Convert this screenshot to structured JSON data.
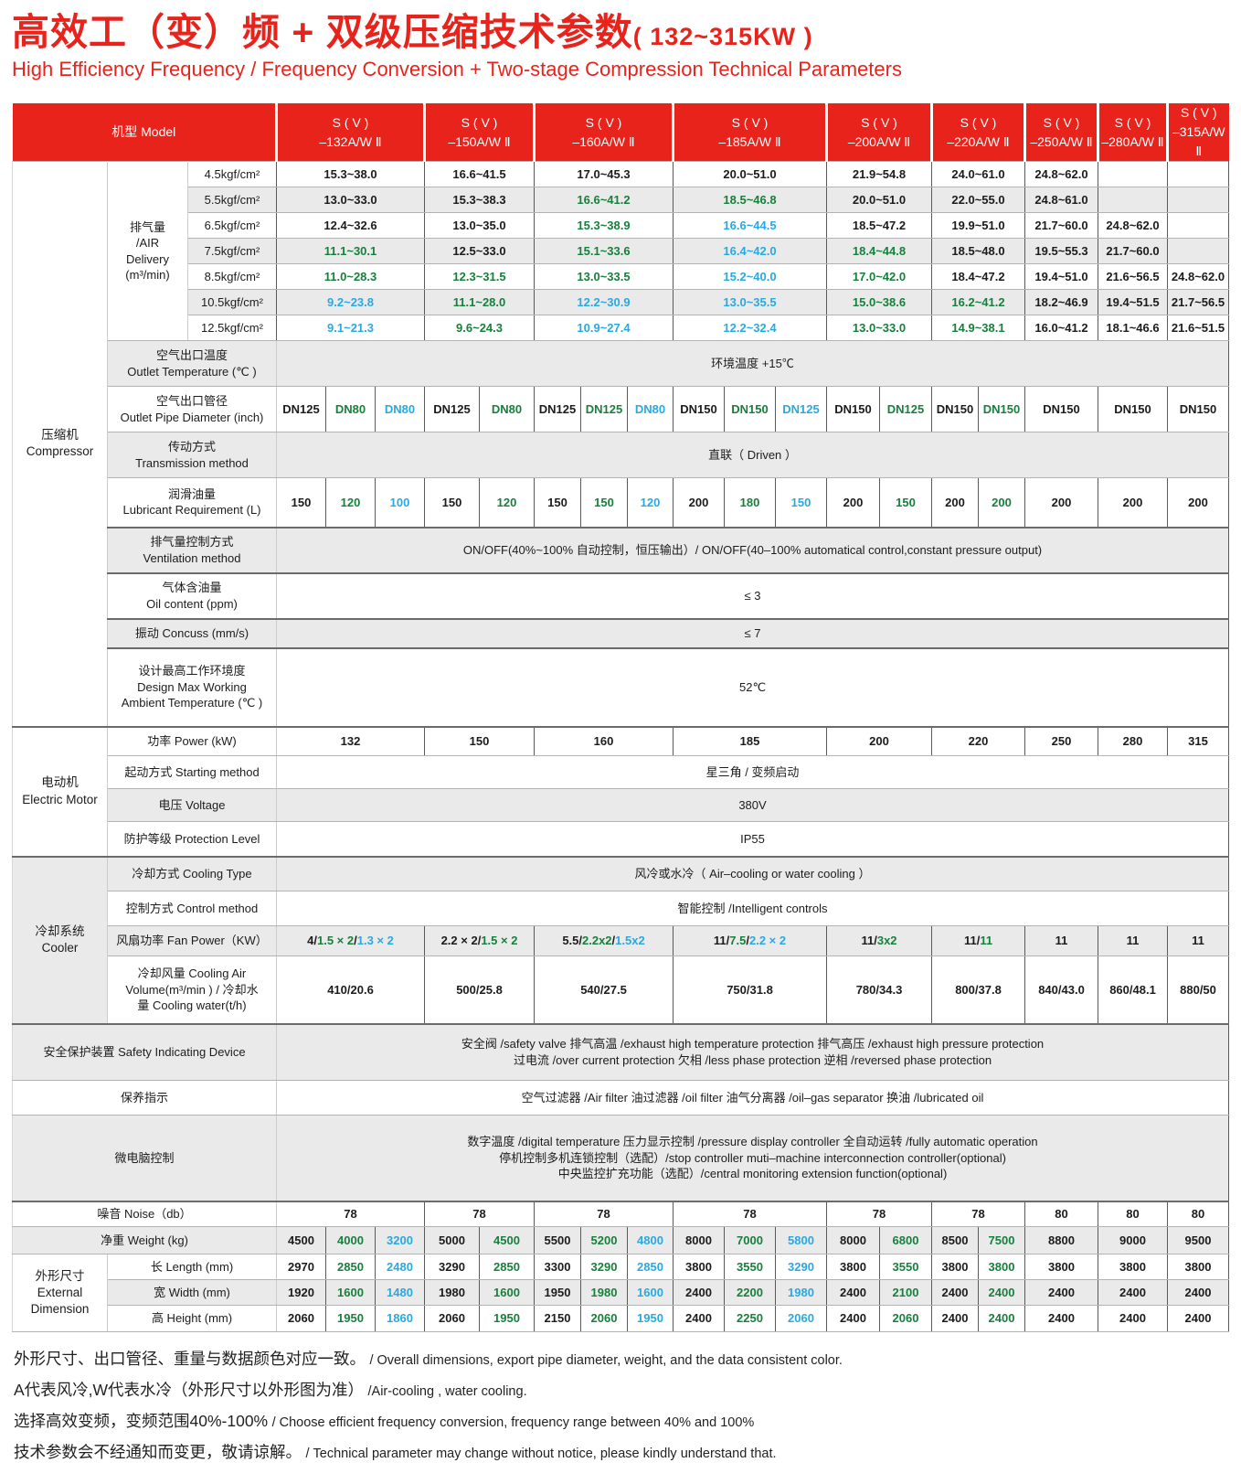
{
  "colors": {
    "red": "#e8231c",
    "green": "#17803c",
    "blue": "#29a9e1"
  },
  "title": {
    "zh": "高效工（变）频 + 双级压缩技术参数",
    "kw": "( 132~315KW )",
    "en": "High Efficiency Frequency / Frequency Conversion + Two-stage Compression Technical Parameters"
  },
  "header": {
    "model_label": "机型 Model",
    "models": [
      {
        "line1": "S ( V )",
        "line2": "–132A/W Ⅱ"
      },
      {
        "line1": "S ( V )",
        "line2": "–150A/W Ⅱ"
      },
      {
        "line1": "S ( V )",
        "line2": "–160A/W Ⅱ"
      },
      {
        "line1": "S ( V )",
        "line2": "–185A/W Ⅱ"
      },
      {
        "line1": "S ( V )",
        "line2": "–200A/W Ⅱ"
      },
      {
        "line1": "S ( V )",
        "line2": "–220A/W Ⅱ"
      },
      {
        "line1": "S ( V )",
        "line2": "–250A/W Ⅱ"
      },
      {
        "line1": "S ( V )",
        "line2": "–280A/W Ⅱ"
      },
      {
        "line1": "S ( V )",
        "line2": "–315A/W Ⅱ"
      }
    ]
  },
  "labels": {
    "compressor": "压缩机\nCompressor",
    "air_delivery": "排气量\n/AIR\nDelivery\n(m³/min)",
    "outlet_temp": "空气出口温度\nOutlet Temperature (℃ )",
    "outlet_pipe": "空气出口管径\nOutlet Pipe Diameter (inch)",
    "transmission": "传动方式\nTransmission method",
    "lubricant": "润滑油量\nLubricant Requirement (L)",
    "ventilation": "排气量控制方式\nVentilation method",
    "oil_content": "气体含油量\nOil content (ppm)",
    "concuss": "振动 Concuss (mm/s)",
    "design_max": "设计最高工作环境度\nDesign Max Working\nAmbient Temperature (℃ )",
    "motor": "电动机\nElectric Motor",
    "power": "功率 Power (kW)",
    "starting": "起动方式 Starting method",
    "voltage": "电压 Voltage",
    "protection": "防护等级 Protection Level",
    "cooler": "冷却系统\nCooler",
    "cooling_type": "冷却方式 Cooling Type",
    "control": "控制方式 Control method",
    "fan_power": "风扇功率 Fan Power（KW）",
    "cooling_volume": "冷却风量 Cooling Air\nVolume(m³/min ) / 冷却水\n量 Cooling water(t/h)",
    "safety": "安全保护装置 Safety Indicating Device",
    "maintenance": "保养指示",
    "micro": "微电脑控制",
    "noise": "噪音 Noise（db）",
    "weight": "净重 Weight (kg)",
    "ext_dim": "外形尺寸\nExternal\nDimension",
    "length": "长 Length  (mm)",
    "width": "宽 Width  (mm)",
    "height": "高 Height  (mm)"
  },
  "body": {
    "air": [
      {
        "label": "4.5kgf/cm²",
        "cells": [
          {
            "v": "15.3~38.0",
            "c": "k"
          },
          {
            "v": "16.6~41.5",
            "c": "k"
          },
          {
            "v": "17.0~45.3",
            "c": "k"
          },
          {
            "v": "20.0~51.0",
            "c": "k"
          },
          {
            "v": "21.9~54.8",
            "c": "k"
          },
          {
            "v": "24.0~61.0",
            "c": "k"
          },
          {
            "v": "24.8~62.0",
            "c": "k"
          },
          {
            "v": ""
          },
          {
            "v": ""
          }
        ]
      },
      {
        "label": "5.5kgf/cm²",
        "cells": [
          {
            "v": "13.0~33.0",
            "c": "k"
          },
          {
            "v": "15.3~38.3",
            "c": "k"
          },
          {
            "v": "16.6~41.2",
            "c": "g"
          },
          {
            "v": "18.5~46.8",
            "c": "g"
          },
          {
            "v": "20.0~51.0",
            "c": "k"
          },
          {
            "v": "22.0~55.0",
            "c": "k"
          },
          {
            "v": "24.8~61.0",
            "c": "k"
          },
          {
            "v": ""
          },
          {
            "v": ""
          }
        ]
      },
      {
        "label": "6.5kgf/cm²",
        "cells": [
          {
            "v": "12.4~32.6",
            "c": "k"
          },
          {
            "v": "13.0~35.0",
            "c": "k"
          },
          {
            "v": "15.3~38.9",
            "c": "g"
          },
          {
            "v": "16.6~44.5",
            "c": "b"
          },
          {
            "v": "18.5~47.2",
            "c": "k"
          },
          {
            "v": "19.9~51.0",
            "c": "k"
          },
          {
            "v": "21.7~60.0",
            "c": "k"
          },
          {
            "v": "24.8~62.0",
            "c": "k"
          },
          {
            "v": ""
          }
        ]
      },
      {
        "label": "7.5kgf/cm²",
        "cells": [
          {
            "v": "11.1~30.1",
            "c": "g"
          },
          {
            "v": "12.5~33.0",
            "c": "k"
          },
          {
            "v": "15.1~33.6",
            "c": "g"
          },
          {
            "v": "16.4~42.0",
            "c": "b"
          },
          {
            "v": "18.4~44.8",
            "c": "g"
          },
          {
            "v": "18.5~48.0",
            "c": "k"
          },
          {
            "v": "19.5~55.3",
            "c": "k"
          },
          {
            "v": "21.7~60.0",
            "c": "k"
          },
          {
            "v": ""
          }
        ]
      },
      {
        "label": "8.5kgf/cm²",
        "cells": [
          {
            "v": "11.0~28.3",
            "c": "g"
          },
          {
            "v": "12.3~31.5",
            "c": "g"
          },
          {
            "v": "13.0~33.5",
            "c": "g"
          },
          {
            "v": "15.2~40.0",
            "c": "b"
          },
          {
            "v": "17.0~42.0",
            "c": "g"
          },
          {
            "v": "18.4~47.2",
            "c": "k"
          },
          {
            "v": "19.4~51.0",
            "c": "k"
          },
          {
            "v": "21.6~56.5",
            "c": "k"
          },
          {
            "v": "24.8~62.0",
            "c": "k"
          }
        ]
      },
      {
        "label": "10.5kgf/cm²",
        "cells": [
          {
            "v": "9.2~23.8",
            "c": "b"
          },
          {
            "v": "11.1~28.0",
            "c": "g"
          },
          {
            "v": "12.2~30.9",
            "c": "b"
          },
          {
            "v": "13.0~35.5",
            "c": "b"
          },
          {
            "v": "15.0~38.6",
            "c": "g"
          },
          {
            "v": "16.2~41.2",
            "c": "g"
          },
          {
            "v": "18.2~46.9",
            "c": "k"
          },
          {
            "v": "19.4~51.5",
            "c": "k"
          },
          {
            "v": "21.7~56.5",
            "c": "k"
          }
        ]
      },
      {
        "label": "12.5kgf/cm²",
        "cells": [
          {
            "v": "9.1~21.3",
            "c": "b"
          },
          {
            "v": "9.6~24.3",
            "c": "g"
          },
          {
            "v": "10.9~27.4",
            "c": "b"
          },
          {
            "v": "12.2~32.4",
            "c": "b"
          },
          {
            "v": "13.0~33.0",
            "c": "g"
          },
          {
            "v": "14.9~38.1",
            "c": "g"
          },
          {
            "v": "16.0~41.2",
            "c": "k"
          },
          {
            "v": "18.1~46.6",
            "c": "k"
          },
          {
            "v": "21.6~51.5",
            "c": "k"
          }
        ]
      }
    ],
    "outlet_temp": [
      {
        "v": "环境温度 +15℃"
      }
    ],
    "pipe": [
      {
        "v": "DN125",
        "c": "k"
      },
      {
        "v": "DN80",
        "c": "g"
      },
      {
        "v": "DN80",
        "c": "b"
      },
      {
        "v": "DN125",
        "c": "k"
      },
      {
        "v": "DN80",
        "c": "g"
      },
      {
        "v": "DN125",
        "c": "k"
      },
      {
        "v": "DN125",
        "c": "g"
      },
      {
        "v": "DN80",
        "c": "b"
      },
      {
        "v": "DN150",
        "c": "k"
      },
      {
        "v": "DN150",
        "c": "g"
      },
      {
        "v": "DN125",
        "c": "b"
      },
      {
        "v": "DN150",
        "c": "k"
      },
      {
        "v": "DN125",
        "c": "g"
      },
      {
        "v": "DN150",
        "c": "k"
      },
      {
        "v": "DN150",
        "c": "g"
      },
      {
        "v": "DN150",
        "c": "k"
      },
      {
        "v": "DN150",
        "c": "k"
      },
      {
        "v": "DN150",
        "c": "k"
      }
    ],
    "transmission": [
      {
        "v": "直联（ Driven ）"
      }
    ],
    "lubricant": [
      {
        "v": "150",
        "c": "k"
      },
      {
        "v": "120",
        "c": "g"
      },
      {
        "v": "100",
        "c": "b"
      },
      {
        "v": "150",
        "c": "k"
      },
      {
        "v": "120",
        "c": "g"
      },
      {
        "v": "150",
        "c": "k"
      },
      {
        "v": "150",
        "c": "g"
      },
      {
        "v": "120",
        "c": "b"
      },
      {
        "v": "200",
        "c": "k"
      },
      {
        "v": "180",
        "c": "g"
      },
      {
        "v": "150",
        "c": "b"
      },
      {
        "v": "200",
        "c": "k"
      },
      {
        "v": "150",
        "c": "g"
      },
      {
        "v": "200",
        "c": "k"
      },
      {
        "v": "200",
        "c": "g"
      },
      {
        "v": "200",
        "c": "k"
      },
      {
        "v": "200",
        "c": "k"
      },
      {
        "v": "200",
        "c": "k"
      }
    ],
    "ventilation": [
      {
        "v": "ON/OFF(40%~100% 自动控制，恒压输出）/ ON/OFF(40–100% automatical control,constant pressure output)"
      }
    ],
    "oil": [
      {
        "v": "≤ 3"
      }
    ],
    "concuss": [
      {
        "v": "≤ 7"
      }
    ],
    "design": [
      {
        "v": "52℃"
      }
    ],
    "power": [
      {
        "v": "132",
        "c": "k"
      },
      {
        "v": "150",
        "c": "k"
      },
      {
        "v": "160",
        "c": "k"
      },
      {
        "v": "185",
        "c": "k"
      },
      {
        "v": "200",
        "c": "k"
      },
      {
        "v": "220",
        "c": "k"
      },
      {
        "v": "250",
        "c": "k"
      },
      {
        "v": "280",
        "c": "k"
      },
      {
        "v": "315",
        "c": "k"
      }
    ],
    "starting": [
      {
        "v": "星三角 / 变频启动"
      }
    ],
    "voltage": [
      {
        "v": "380V"
      }
    ],
    "protection": [
      {
        "v": "IP55"
      }
    ],
    "cooling_type": [
      {
        "v": "风冷或水冷（ Air–cooling or water cooling ）"
      }
    ],
    "control": [
      {
        "v": "智能控制 /Intelligent controls"
      }
    ],
    "fan": [
      {
        "seg": [
          [
            "4/",
            "k"
          ],
          [
            "1.5 × 2",
            "g"
          ],
          [
            "/",
            "k"
          ],
          [
            "1.3 × 2",
            "b"
          ]
        ]
      },
      {
        "seg": [
          [
            "2.2 × 2",
            "k"
          ],
          [
            "/",
            "k"
          ],
          [
            "1.5 × 2",
            "g"
          ]
        ]
      },
      {
        "seg": [
          [
            "5.5/",
            "k"
          ],
          [
            "2.2x2",
            "g"
          ],
          [
            "/",
            "k"
          ],
          [
            "1.5x2",
            "b"
          ]
        ]
      },
      {
        "seg": [
          [
            "11/",
            "k"
          ],
          [
            "7.5",
            "g"
          ],
          [
            "/",
            "k"
          ],
          [
            "2.2 × 2",
            "b"
          ]
        ]
      },
      {
        "seg": [
          [
            "11/",
            "k"
          ],
          [
            "3x2",
            "g"
          ]
        ]
      },
      {
        "seg": [
          [
            "11/",
            "k"
          ],
          [
            "11",
            "g"
          ]
        ]
      },
      {
        "v": "11",
        "c": "k"
      },
      {
        "v": "11",
        "c": "k"
      },
      {
        "v": "11",
        "c": "k"
      }
    ],
    "volume": [
      {
        "v": "410/20.6",
        "c": "k"
      },
      {
        "v": "500/25.8",
        "c": "k"
      },
      {
        "v": "540/27.5",
        "c": "k"
      },
      {
        "v": "750/31.8",
        "c": "k"
      },
      {
        "v": "780/34.3",
        "c": "k"
      },
      {
        "v": "800/37.8",
        "c": "k"
      },
      {
        "v": "840/43.0",
        "c": "k"
      },
      {
        "v": "860/48.1",
        "c": "k"
      },
      {
        "v": "880/50",
        "c": "k"
      }
    ],
    "safety": [
      {
        "v": "安全阀 /safety valve  排气高温 /exhaust high temperature protection  排气高压 /exhaust high pressure protection\n过电流 /over current protection  欠相 /less phase protection  逆相 /reversed phase  protection"
      }
    ],
    "maintenance": [
      {
        "v": "空气过滤器 /Air filter  油过滤器 /oil filter   油气分离器 /oil–gas separator  换油 /lubricated oil"
      }
    ],
    "micro": [
      {
        "v": "数字温度 /digital temperature  压力显示控制 /pressure display controller  全自动运转 /fully automatic operation\n停机控制多机连锁控制（选配）/stop controller muti–machine interconnection controller(optional)\n中央监控扩充功能（选配）/central monitoring extension function(optional)"
      }
    ],
    "noise": [
      {
        "v": "78",
        "c": "k"
      },
      {
        "v": "78",
        "c": "k"
      },
      {
        "v": "78",
        "c": "k"
      },
      {
        "v": "78",
        "c": "k"
      },
      {
        "v": "78",
        "c": "k"
      },
      {
        "v": "78",
        "c": "k"
      },
      {
        "v": "80",
        "c": "k"
      },
      {
        "v": "80",
        "c": "k"
      },
      {
        "v": "80",
        "c": "k"
      }
    ],
    "weight": [
      {
        "v": "4500",
        "c": "k"
      },
      {
        "v": "4000",
        "c": "g"
      },
      {
        "v": "3200",
        "c": "b"
      },
      {
        "v": "5000",
        "c": "k"
      },
      {
        "v": "4500",
        "c": "g"
      },
      {
        "v": "5500",
        "c": "k"
      },
      {
        "v": "5200",
        "c": "g"
      },
      {
        "v": "4800",
        "c": "b"
      },
      {
        "v": "8000",
        "c": "k"
      },
      {
        "v": "7000",
        "c": "g"
      },
      {
        "v": "5800",
        "c": "b"
      },
      {
        "v": "8000",
        "c": "k"
      },
      {
        "v": "6800",
        "c": "g"
      },
      {
        "v": "8500",
        "c": "k"
      },
      {
        "v": "7500",
        "c": "g"
      },
      {
        "v": "8800",
        "c": "k"
      },
      {
        "v": "9000",
        "c": "k"
      },
      {
        "v": "9500",
        "c": "k"
      }
    ],
    "length": [
      {
        "v": "2970",
        "c": "k"
      },
      {
        "v": "2850",
        "c": "g"
      },
      {
        "v": "2480",
        "c": "b"
      },
      {
        "v": "3290",
        "c": "k"
      },
      {
        "v": "2850",
        "c": "g"
      },
      {
        "v": "3300",
        "c": "k"
      },
      {
        "v": "3290",
        "c": "g"
      },
      {
        "v": "2850",
        "c": "b"
      },
      {
        "v": "3800",
        "c": "k"
      },
      {
        "v": "3550",
        "c": "g"
      },
      {
        "v": "3290",
        "c": "b"
      },
      {
        "v": "3800",
        "c": "k"
      },
      {
        "v": "3550",
        "c": "g"
      },
      {
        "v": "3800",
        "c": "k"
      },
      {
        "v": "3800",
        "c": "g"
      },
      {
        "v": "3800",
        "c": "k"
      },
      {
        "v": "3800",
        "c": "k"
      },
      {
        "v": "3800",
        "c": "k"
      }
    ],
    "width": [
      {
        "v": "1920",
        "c": "k"
      },
      {
        "v": "1600",
        "c": "g"
      },
      {
        "v": "1480",
        "c": "b"
      },
      {
        "v": "1980",
        "c": "k"
      },
      {
        "v": "1600",
        "c": "g"
      },
      {
        "v": "1950",
        "c": "k"
      },
      {
        "v": "1980",
        "c": "g"
      },
      {
        "v": "1600",
        "c": "b"
      },
      {
        "v": "2400",
        "c": "k"
      },
      {
        "v": "2200",
        "c": "g"
      },
      {
        "v": "1980",
        "c": "b"
      },
      {
        "v": "2400",
        "c": "k"
      },
      {
        "v": "2100",
        "c": "g"
      },
      {
        "v": "2400",
        "c": "k"
      },
      {
        "v": "2400",
        "c": "g"
      },
      {
        "v": "2400",
        "c": "k"
      },
      {
        "v": "2400",
        "c": "k"
      },
      {
        "v": "2400",
        "c": "k"
      }
    ],
    "height": [
      {
        "v": "2060",
        "c": "k"
      },
      {
        "v": "1950",
        "c": "g"
      },
      {
        "v": "1860",
        "c": "b"
      },
      {
        "v": "2060",
        "c": "k"
      },
      {
        "v": "1950",
        "c": "g"
      },
      {
        "v": "2150",
        "c": "k"
      },
      {
        "v": "2060",
        "c": "g"
      },
      {
        "v": "1950",
        "c": "b"
      },
      {
        "v": "2400",
        "c": "k"
      },
      {
        "v": "2250",
        "c": "g"
      },
      {
        "v": "2060",
        "c": "b"
      },
      {
        "v": "2400",
        "c": "k"
      },
      {
        "v": "2060",
        "c": "g"
      },
      {
        "v": "2400",
        "c": "k"
      },
      {
        "v": "2400",
        "c": "g"
      },
      {
        "v": "2400",
        "c": "k"
      },
      {
        "v": "2400",
        "c": "k"
      },
      {
        "v": "2400",
        "c": "k"
      }
    ]
  },
  "notes": [
    {
      "zh": "外形尺寸、出口管径、重量与数据颜色对应一致。",
      "en": "/ Overall dimensions, export pipe diameter, weight, and the data consistent color."
    },
    {
      "zh": "A代表风冷,W代表水冷（外形尺寸以外形图为准）",
      "en": "/Air-cooling , water cooling."
    },
    {
      "zh": "选择高效变频，变频范围40%-100%",
      "en": "/ Choose efficient frequency conversion, frequency range between 40% and 100%"
    },
    {
      "zh": "技术参数会不经通知而变更，敬请谅解。",
      "en": "/ Technical parameter may change without notice, please kindly understand that."
    }
  ]
}
